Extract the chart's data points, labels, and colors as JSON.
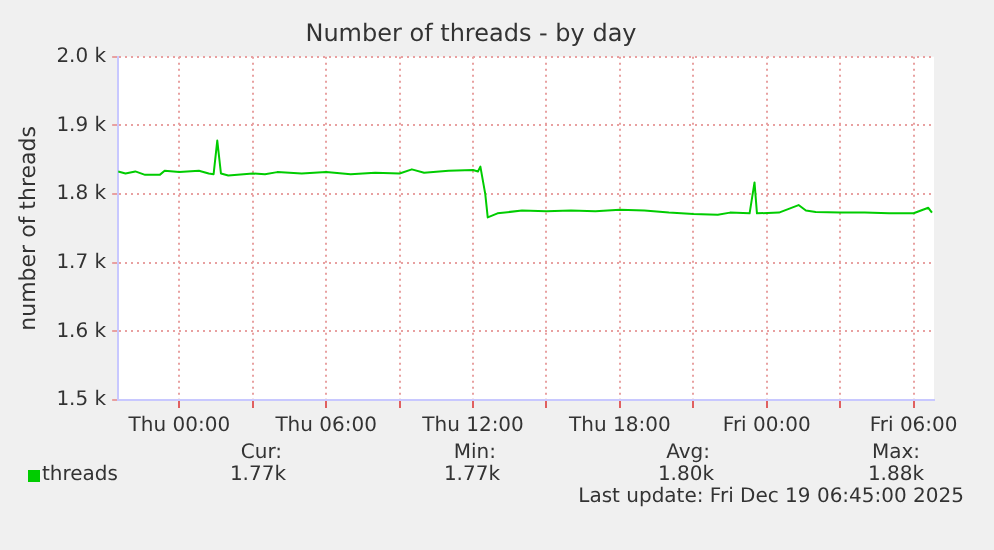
{
  "chart_data": {
    "type": "line",
    "title": "Number of threads - by day",
    "ylabel": "number of threads",
    "x": [
      "2025-12-17T21:30",
      "2025-12-17T21:48",
      "2025-12-17T22:12",
      "2025-12-17T22:36",
      "2025-12-17T23:12",
      "2025-12-17T23:24",
      "2025-12-18T00:00",
      "2025-12-18T00:48",
      "2025-12-18T01:12",
      "2025-12-18T01:24",
      "2025-12-18T01:33",
      "2025-12-18T01:42",
      "2025-12-18T02:00",
      "2025-12-18T03:00",
      "2025-12-18T03:30",
      "2025-12-18T04:00",
      "2025-12-18T05:00",
      "2025-12-18T06:00",
      "2025-12-18T07:00",
      "2025-12-18T08:00",
      "2025-12-18T09:00",
      "2025-12-18T09:30",
      "2025-12-18T10:00",
      "2025-12-18T11:00",
      "2025-12-18T12:00",
      "2025-12-18T12:12",
      "2025-12-18T12:18",
      "2025-12-18T12:30",
      "2025-12-18T12:36",
      "2025-12-18T13:00",
      "2025-12-18T14:00",
      "2025-12-18T15:00",
      "2025-12-18T16:00",
      "2025-12-18T17:00",
      "2025-12-18T18:00",
      "2025-12-18T19:00",
      "2025-12-18T20:00",
      "2025-12-18T21:00",
      "2025-12-18T22:00",
      "2025-12-18T22:30",
      "2025-12-18T23:18",
      "2025-12-18T23:30",
      "2025-12-18T23:36",
      "2025-12-19T00:30",
      "2025-12-19T01:18",
      "2025-12-19T01:36",
      "2025-12-19T02:00",
      "2025-12-19T03:00",
      "2025-12-19T04:00",
      "2025-12-19T05:00",
      "2025-12-19T06:00",
      "2025-12-19T06:36",
      "2025-12-19T06:45"
    ],
    "series": [
      {
        "name": "threads",
        "color": "#00cc00",
        "values": [
          1833,
          1830,
          1833,
          1828,
          1828,
          1834,
          1832,
          1834,
          1830,
          1829,
          1878,
          1830,
          1827,
          1830,
          1829,
          1832,
          1830,
          1832,
          1829,
          1831,
          1830,
          1836,
          1831,
          1834,
          1835,
          1833,
          1840,
          1800,
          1766,
          1772,
          1776,
          1775,
          1776,
          1775,
          1777,
          1776,
          1773,
          1771,
          1770,
          1773,
          1772,
          1817,
          1772,
          1773,
          1784,
          1776,
          1774,
          1773,
          1773,
          1772,
          1772,
          1780,
          1773
        ]
      }
    ],
    "xlim": [
      "2025-12-17T21:30",
      "2025-12-19T06:50"
    ],
    "xticks": [
      {
        "value": "2025-12-18T00:00",
        "label": "Thu 00:00"
      },
      {
        "value": "2025-12-18T03:00",
        "label": null
      },
      {
        "value": "2025-12-18T06:00",
        "label": "Thu 06:00"
      },
      {
        "value": "2025-12-18T09:00",
        "label": null
      },
      {
        "value": "2025-12-18T12:00",
        "label": "Thu 12:00"
      },
      {
        "value": "2025-12-18T15:00",
        "label": null
      },
      {
        "value": "2025-12-18T18:00",
        "label": "Thu 18:00"
      },
      {
        "value": "2025-12-18T21:00",
        "label": null
      },
      {
        "value": "2025-12-19T00:00",
        "label": "Fri 00:00"
      },
      {
        "value": "2025-12-19T03:00",
        "label": null
      },
      {
        "value": "2025-12-19T06:00",
        "label": "Fri 06:00"
      }
    ],
    "ylim": [
      1500,
      2000
    ],
    "yticks": [
      {
        "value": 1500,
        "label": "1.5 k"
      },
      {
        "value": 1600,
        "label": "1.6 k"
      },
      {
        "value": 1700,
        "label": "1.7 k"
      },
      {
        "value": 1800,
        "label": "1.8 k"
      },
      {
        "value": 1900,
        "label": "1.9 k"
      },
      {
        "value": 2000,
        "label": "2.0 k"
      }
    ],
    "grid": true,
    "legend": "bottom left",
    "marker": "none",
    "line_style": "solid",
    "annotations": [
      "Cur:",
      "Min:",
      "Avg:",
      "Max:",
      "1.77k",
      "1.77k",
      "1.80k",
      "1.88k",
      "Last update: Fri Dec 19 06:45:00 2025"
    ]
  }
}
